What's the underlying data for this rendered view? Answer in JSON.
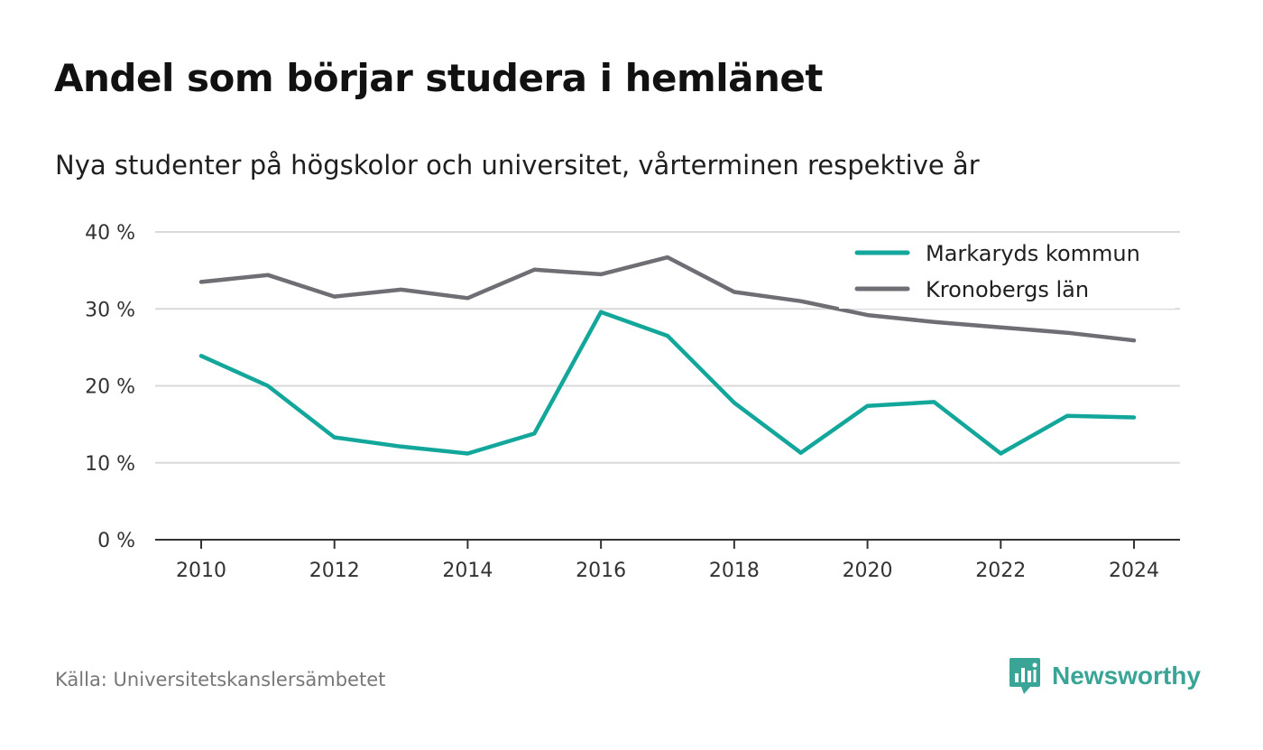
{
  "header": {
    "title": "Andel som börjar studera i hemlänet",
    "subtitle": "Nya studenter på högskolor och universitet, vårterminen respektive år"
  },
  "footer": {
    "source": "Källa: Universitetskanslersämbetet",
    "brand": "Newsworthy"
  },
  "colors": {
    "markaryd": "#13a69a",
    "kronoberg": "#6f6e74",
    "grid": "#d9d9d9",
    "axis": "#333333",
    "brand": "#3aa597"
  },
  "chart_data": {
    "type": "line",
    "title": "Andel som börjar studera i hemlänet",
    "subtitle": "Nya studenter på högskolor och universitet, vårterminen respektive år",
    "xlabel": "",
    "ylabel": "",
    "x": [
      2010,
      2011,
      2012,
      2013,
      2014,
      2015,
      2016,
      2017,
      2018,
      2019,
      2020,
      2021,
      2022,
      2023,
      2024
    ],
    "x_ticks": [
      "2010",
      "2012",
      "2014",
      "2016",
      "2018",
      "2020",
      "2022",
      "2024"
    ],
    "y_ticks": [
      "0 %",
      "10 %",
      "20 %",
      "30 %",
      "40 %"
    ],
    "ylim": [
      0,
      40
    ],
    "grid": true,
    "legend_position": "top-right",
    "series": [
      {
        "name": "Markaryds kommun",
        "color": "#13a69a",
        "values": [
          23.9,
          20.0,
          13.3,
          12.1,
          11.2,
          13.8,
          29.6,
          26.5,
          17.8,
          11.3,
          17.4,
          17.9,
          11.2,
          16.1,
          15.9
        ]
      },
      {
        "name": "Kronobergs län",
        "color": "#6f6e74",
        "values": [
          33.5,
          34.4,
          31.6,
          32.5,
          31.4,
          35.1,
          34.5,
          36.7,
          32.2,
          31.0,
          29.2,
          28.3,
          27.6,
          26.9,
          25.9
        ]
      }
    ]
  }
}
